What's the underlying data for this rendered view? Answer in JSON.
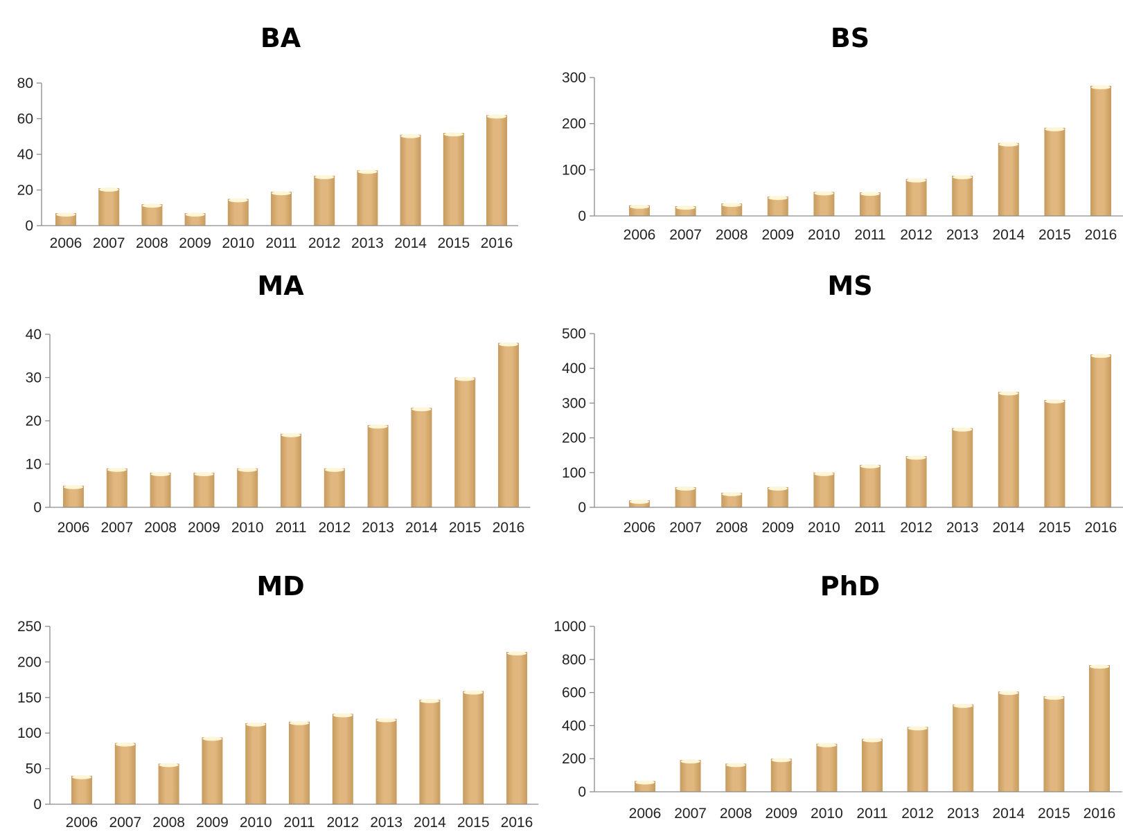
{
  "bar_color": "#e0b77e",
  "bar_highlight": "#fff6d8",
  "bar_shadow": "#c79b5f",
  "chart_data": [
    {
      "type": "bar",
      "title": "BA",
      "categories": [
        "2006",
        "2007",
        "2008",
        "2009",
        "2010",
        "2011",
        "2012",
        "2013",
        "2014",
        "2015",
        "2016"
      ],
      "values": [
        7,
        21,
        12,
        7,
        15,
        19,
        28,
        31,
        51,
        52,
        62
      ],
      "ylim": [
        0,
        80
      ],
      "yticks": [
        0,
        20,
        40,
        60,
        80
      ],
      "xlabel": "",
      "ylabel": "",
      "grid": false,
      "legend": "none"
    },
    {
      "type": "bar",
      "title": "BS",
      "categories": [
        "2006",
        "2007",
        "2008",
        "2009",
        "2010",
        "2011",
        "2012",
        "2013",
        "2014",
        "2015",
        "2016"
      ],
      "values": [
        23,
        21,
        27,
        42,
        52,
        51,
        80,
        87,
        158,
        191,
        282
      ],
      "ylim": [
        0,
        300
      ],
      "yticks": [
        0,
        100,
        200,
        300
      ],
      "xlabel": "",
      "ylabel": "",
      "grid": false,
      "legend": "none"
    },
    {
      "type": "bar",
      "title": "MA",
      "categories": [
        "2006",
        "2007",
        "2008",
        "2009",
        "2010",
        "2011",
        "2012",
        "2013",
        "2014",
        "2015",
        "2016"
      ],
      "values": [
        5,
        9,
        8,
        8,
        9,
        17,
        9,
        19,
        23,
        30,
        38
      ],
      "ylim": [
        0,
        40
      ],
      "yticks": [
        0,
        10,
        20,
        30,
        40
      ],
      "xlabel": "",
      "ylabel": "",
      "grid": false,
      "legend": "none"
    },
    {
      "type": "bar",
      "title": "MS",
      "categories": [
        "2006",
        "2007",
        "2008",
        "2009",
        "2010",
        "2011",
        "2012",
        "2013",
        "2014",
        "2015",
        "2016"
      ],
      "values": [
        20,
        58,
        42,
        58,
        100,
        122,
        147,
        228,
        332,
        309,
        440
      ],
      "ylim": [
        0,
        500
      ],
      "yticks": [
        0,
        100,
        200,
        300,
        400,
        500
      ],
      "xlabel": "",
      "ylabel": "",
      "grid": false,
      "legend": "none"
    },
    {
      "type": "bar",
      "title": "MD",
      "categories": [
        "2006",
        "2007",
        "2008",
        "2009",
        "2010",
        "2011",
        "2012",
        "2013",
        "2014",
        "2015",
        "2016"
      ],
      "values": [
        40,
        86,
        57,
        94,
        114,
        116,
        127,
        120,
        147,
        159,
        214
      ],
      "ylim": [
        0,
        250
      ],
      "yticks": [
        0,
        50,
        100,
        150,
        200,
        250
      ],
      "xlabel": "",
      "ylabel": "",
      "grid": false,
      "legend": "none"
    },
    {
      "type": "bar",
      "title": "PhD",
      "categories": [
        "2006",
        "2007",
        "2008",
        "2009",
        "2010",
        "2011",
        "2012",
        "2013",
        "2014",
        "2015",
        "2016"
      ],
      "values": [
        65,
        192,
        170,
        200,
        290,
        320,
        392,
        528,
        606,
        577,
        765
      ],
      "ylim": [
        0,
        1000
      ],
      "yticks": [
        0,
        200,
        400,
        600,
        800,
        1000
      ],
      "xlabel": "",
      "ylabel": "",
      "grid": false,
      "legend": "none"
    }
  ]
}
